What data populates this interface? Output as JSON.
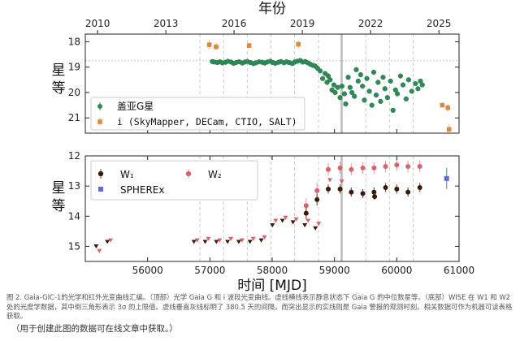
{
  "figure": {
    "caption": "图 2. Gaia-GIC-1的光学和红外光变曲线汇编。（顶部）光学 Gaia G 和 i 波段光变曲线。虚线横线表示静息状态下 Gaia G 的中位数星等。（底部）WISE 在 W1 和 W2 处的光度学数据，其中倒三角形表示 3σ 的上限值。虚线垂直灰线标明了 380.5 天的间隔，而突出显示的实线则是 Gaia 警报的观测时刻。相关数据可作为机器可读表格获取。",
    "data_note": "（用于创建此图的数据可在线文章中获取。）"
  },
  "chart_data": [
    {
      "type": "scatter",
      "panel": "top",
      "title": "",
      "top_axis_label": "年份",
      "top_ticks": [
        "2010",
        "2013",
        "2016",
        "2019",
        "2022",
        "2025"
      ],
      "top_tick_mjd": [
        55197,
        56293,
        57388,
        58484,
        59580,
        60676
      ],
      "ylabel": "星等",
      "ylim": [
        21.6,
        17.7
      ],
      "y_inverted": true,
      "yticks": [
        18,
        19,
        20,
        21
      ],
      "xlim": [
        55000,
        61000
      ],
      "quiescent_median_mag": 18.75,
      "alert_mjd": 59115,
      "vertical_dashed_mjd": [
        56839,
        57220,
        57600,
        57981,
        58361,
        58742,
        59122,
        59503,
        59883,
        60264
      ],
      "legend_position": "bottom-left",
      "series": [
        {
          "name": "盖亚G星",
          "color": "#2e8b57",
          "marker": "circle",
          "points": [
            [
              57040,
              18.78
            ],
            [
              57070,
              18.8
            ],
            [
              57120,
              18.82
            ],
            [
              57160,
              18.79
            ],
            [
              57200,
              18.83
            ],
            [
              57250,
              18.81
            ],
            [
              57290,
              18.77
            ],
            [
              57340,
              18.8
            ],
            [
              57380,
              18.85
            ],
            [
              57420,
              18.82
            ],
            [
              57470,
              18.79
            ],
            [
              57520,
              18.84
            ],
            [
              57560,
              18.8
            ],
            [
              57600,
              18.78
            ],
            [
              57650,
              18.82
            ],
            [
              57700,
              18.86
            ],
            [
              57740,
              18.83
            ],
            [
              57790,
              18.79
            ],
            [
              57840,
              18.81
            ],
            [
              57880,
              18.84
            ],
            [
              57920,
              18.8
            ],
            [
              57970,
              18.77
            ],
            [
              58010,
              18.82
            ],
            [
              58050,
              18.85
            ],
            [
              58100,
              18.81
            ],
            [
              58140,
              18.78
            ],
            [
              58190,
              18.83
            ],
            [
              58230,
              18.79
            ],
            [
              58270,
              18.82
            ],
            [
              58320,
              18.86
            ],
            [
              58360,
              18.8
            ],
            [
              58400,
              18.77
            ],
            [
              58450,
              18.74
            ],
            [
              58490,
              18.8
            ],
            [
              58530,
              18.78
            ],
            [
              58570,
              18.83
            ],
            [
              58610,
              18.88
            ],
            [
              58650,
              18.93
            ],
            [
              58690,
              18.96
            ],
            [
              58730,
              19.05
            ],
            [
              58770,
              19.15
            ],
            [
              58810,
              19.45
            ],
            [
              58850,
              19.25
            ],
            [
              58880,
              19.6
            ],
            [
              58900,
              19.35
            ],
            [
              58930,
              19.5
            ],
            [
              58960,
              19.9
            ],
            [
              58990,
              19.7
            ],
            [
              59010,
              20.0
            ],
            [
              59050,
              19.8
            ],
            [
              59090,
              20.2
            ],
            [
              59120,
              19.75
            ],
            [
              59160,
              20.05
            ],
            [
              59180,
              20.45
            ],
            [
              59220,
              19.4
            ],
            [
              59250,
              19.8
            ],
            [
              59280,
              20.0
            ],
            [
              59320,
              20.15
            ],
            [
              59350,
              19.1
            ],
            [
              59380,
              19.55
            ],
            [
              59420,
              19.3
            ],
            [
              59450,
              19.75
            ],
            [
              59480,
              20.3
            ],
            [
              59520,
              19.45
            ],
            [
              59560,
              19.95
            ],
            [
              59600,
              20.5
            ],
            [
              59630,
              19.2
            ],
            [
              59670,
              20.1
            ],
            [
              59700,
              19.6
            ],
            [
              59740,
              20.35
            ],
            [
              59780,
              19.4
            ],
            [
              59810,
              19.85
            ],
            [
              59850,
              20.2
            ],
            [
              59900,
              19.55
            ],
            [
              59940,
              20.7
            ],
            [
              59980,
              19.9
            ],
            [
              60010,
              20.05
            ],
            [
              60060,
              19.35
            ],
            [
              60100,
              19.7
            ],
            [
              60150,
              20.25
            ],
            [
              60190,
              19.5
            ],
            [
              60240,
              19.95
            ],
            [
              60300,
              19.65
            ],
            [
              60340,
              19.85
            ],
            [
              60380,
              19.55
            ],
            [
              60410,
              19.7
            ]
          ]
        },
        {
          "name": "i (SkyMapper, DECam, CTIO, SALT)",
          "color": "#d98c3e",
          "marker": "square",
          "points": [
            [
              56990,
              18.12,
              0.18
            ],
            [
              57100,
              18.2,
              0.15
            ],
            [
              57630,
              18.15,
              0.1
            ],
            [
              58420,
              18.1,
              0.15
            ],
            [
              60730,
              20.5,
              0.08
            ],
            [
              60820,
              20.6,
              0.15
            ],
            [
              60840,
              21.45,
              0.2
            ]
          ]
        }
      ]
    },
    {
      "type": "scatter",
      "panel": "bottom",
      "title": "",
      "xlabel": "时间 [MJD]",
      "xlim": [
        55000,
        61000
      ],
      "xticks": [
        56000,
        57000,
        58000,
        59000,
        60000,
        61000
      ],
      "ylabel": "星等",
      "ylim": [
        15.5,
        12.0
      ],
      "y_inverted": true,
      "yticks": [
        12,
        13,
        14,
        15
      ],
      "alert_mjd": 59115,
      "legend_position": "top-left",
      "series": [
        {
          "name": "W₁",
          "color": "#3a1a0a",
          "marker": "circle",
          "points": [
            [
              58545,
              13.9,
              0.2
            ],
            [
              58720,
              13.45,
              0.2
            ],
            [
              58900,
              13.1,
              0.15
            ],
            [
              59090,
              13.1,
              0.15
            ],
            [
              59270,
              13.2,
              0.15
            ],
            [
              59455,
              13.25,
              0.15
            ],
            [
              59635,
              13.2,
              0.15
            ],
            [
              59645,
              13.35,
              0.1
            ],
            [
              59820,
              13.05,
              0.15
            ],
            [
              60000,
              13.1,
              0.15
            ],
            [
              60180,
              13.2,
              0.15
            ],
            [
              60370,
              13.05,
              0.15
            ]
          ]
        },
        {
          "name": "W₁ upper limit",
          "color": "#3a1a0a",
          "marker": "triangle-down",
          "points": [
            [
              55200,
              15.0
            ],
            [
              55380,
              14.85
            ],
            [
              56770,
              14.85
            ],
            [
              56950,
              14.85
            ],
            [
              57130,
              14.85
            ],
            [
              57310,
              14.85
            ],
            [
              57490,
              14.85
            ],
            [
              57670,
              14.85
            ],
            [
              57850,
              14.8
            ],
            [
              58030,
              14.3
            ],
            [
              58190,
              14.15
            ],
            [
              58360,
              14.2
            ],
            [
              58550,
              14.3
            ],
            [
              58720,
              14.4
            ]
          ]
        },
        {
          "name": "W₂",
          "color": "#d9626b",
          "marker": "circle",
          "points": [
            [
              58545,
              13.65,
              0.25
            ],
            [
              58720,
              13.15,
              0.25
            ],
            [
              58900,
              12.45,
              0.2
            ],
            [
              59090,
              12.4,
              0.2
            ],
            [
              59270,
              12.45,
              0.2
            ],
            [
              59455,
              12.4,
              0.2
            ],
            [
              59635,
              12.4,
              0.2
            ],
            [
              59820,
              12.35,
              0.2
            ],
            [
              60000,
              12.3,
              0.2
            ],
            [
              60180,
              12.35,
              0.2
            ],
            [
              60370,
              12.35,
              0.2
            ]
          ]
        },
        {
          "name": "W₂ upper limit",
          "color": "#d9626b",
          "marker": "triangle-down",
          "points": [
            [
              55200,
              15.15
            ],
            [
              55380,
              14.8
            ],
            [
              56770,
              14.8
            ],
            [
              56950,
              14.75
            ],
            [
              57130,
              14.8
            ],
            [
              57310,
              14.75
            ],
            [
              57490,
              14.8
            ],
            [
              57670,
              14.75
            ],
            [
              57850,
              14.7
            ],
            [
              58030,
              14.15
            ],
            [
              58190,
              14.05
            ],
            [
              58360,
              14.1
            ],
            [
              58550,
              14.15
            ],
            [
              58720,
              14.25
            ],
            [
              58900,
              12.8
            ],
            [
              59090,
              12.85
            ]
          ]
        },
        {
          "name": "SPHEREx",
          "color": "#5b6fd6",
          "marker": "square",
          "points": [
            [
              60800,
              12.75,
              0.35
            ]
          ]
        }
      ]
    }
  ]
}
